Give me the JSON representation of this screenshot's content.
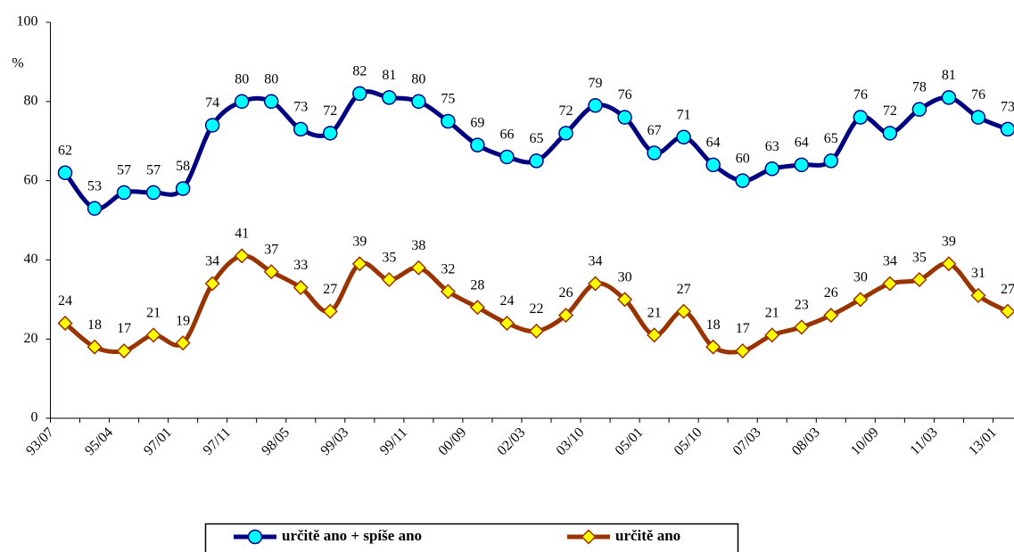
{
  "chart_data": {
    "type": "line",
    "y_axis_label": "%",
    "categories": [
      "93/07",
      null,
      "95/04",
      null,
      "97/01",
      null,
      "97/11",
      null,
      "98/05",
      null,
      "99/03",
      null,
      "99/11",
      null,
      "00/09",
      null,
      "02/03",
      null,
      "03/10",
      null,
      "05/01",
      null,
      "05/10",
      null,
      "07/03",
      null,
      "08/03",
      null,
      "10/09",
      null,
      "11/03",
      null,
      "13/01"
    ],
    "series": [
      {
        "name": "určitě ano + spíše ano",
        "color": "#000080",
        "marker_color": "#00ffff",
        "marker": "circle",
        "values": [
          62,
          53,
          57,
          57,
          58,
          74,
          80,
          80,
          73,
          72,
          82,
          81,
          80,
          75,
          69,
          66,
          65,
          72,
          79,
          76,
          67,
          71,
          64,
          60,
          63,
          64,
          65,
          76,
          72,
          78,
          81,
          76,
          73
        ]
      },
      {
        "name": "určitě ano",
        "color": "#993300",
        "marker_color": "#ffff00",
        "marker": "diamond",
        "values": [
          24,
          18,
          17,
          21,
          19,
          34,
          41,
          37,
          33,
          27,
          39,
          35,
          38,
          32,
          28,
          24,
          22,
          26,
          34,
          30,
          21,
          27,
          18,
          17,
          21,
          23,
          26,
          30,
          34,
          35,
          39,
          31,
          27
        ]
      }
    ],
    "ylim": [
      0,
      100
    ],
    "yticks": [
      0,
      20,
      40,
      60,
      80,
      100
    ],
    "grid": false,
    "legend": "bottom"
  }
}
